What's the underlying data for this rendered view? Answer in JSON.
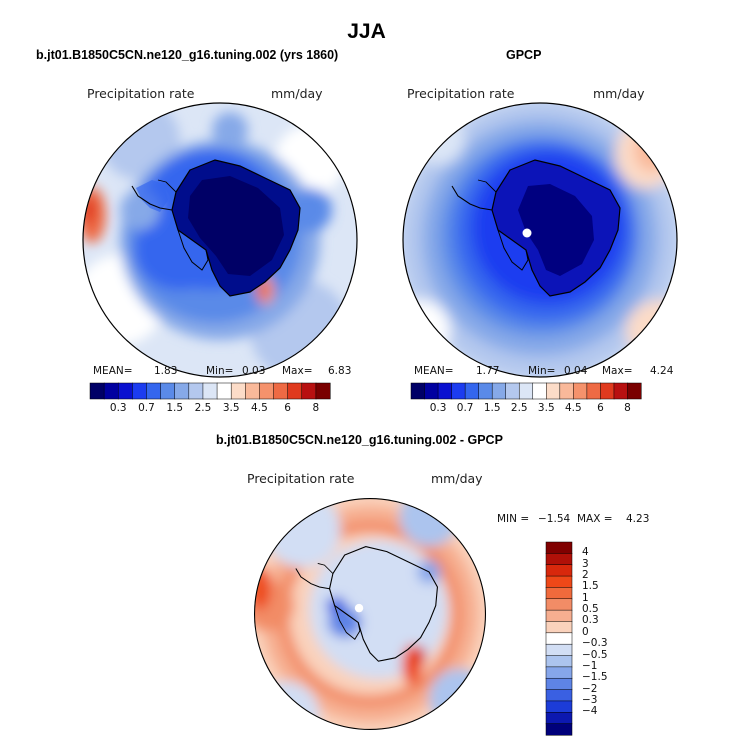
{
  "title": "JJA",
  "panels": [
    {
      "title": "b.jt01.B1850C5CN.ne120_g16.tuning.002 (yrs 1860)",
      "variable": "Precipitation rate",
      "units": "mm/day",
      "stats": {
        "mean_label": "MEAN=",
        "mean": "1.83",
        "min_label": "Min=",
        "min": "0.03",
        "max_label": "Max=",
        "max": "6.83"
      }
    },
    {
      "title": "GPCP",
      "variable": "Precipitation rate",
      "units": "mm/day",
      "stats": {
        "mean_label": "MEAN=",
        "mean": "1.77",
        "min_label": "Min=",
        "min": "0.04",
        "max_label": "Max=",
        "max": "4.24"
      }
    },
    {
      "title": "b.jt01.B1850C5CN.ne120_g16.tuning.002 - GPCP",
      "variable": "Precipitation rate",
      "units": "mm/day",
      "stats": {
        "min_label": "MIN =",
        "min": "−1.54",
        "max_label": "MAX =",
        "max": "4.23"
      }
    }
  ],
  "chart_data": [
    {
      "type": "heatmap",
      "projection": "south-polar-stereographic",
      "title": "b.jt01.B1850C5CN.ne120_g16.tuning.002 (yrs 1860)",
      "variable": "Precipitation rate",
      "units": "mm/day",
      "mean": 1.83,
      "min": 0.03,
      "max": 6.83,
      "colorbar": {
        "orientation": "horizontal",
        "tick_labels": [
          "0.3",
          "0.7",
          "1.5",
          "2.5",
          "3.5",
          "4.5",
          "6",
          "8"
        ],
        "levels": [
          0.2,
          0.3,
          0.5,
          0.7,
          1,
          1.5,
          2,
          2.5,
          3,
          3.5,
          4,
          4.5,
          5,
          6,
          7,
          8
        ],
        "colors": [
          "#000066",
          "#0000a0",
          "#0a10d0",
          "#1c3cf0",
          "#3466ee",
          "#5a8ae8",
          "#86a9e8",
          "#b4c8ee",
          "#dce6f6",
          "#ffffff",
          "#fcdcc8",
          "#f9b99a",
          "#f5926c",
          "#ee6a44",
          "#e03a1e",
          "#b81010",
          "#7a0000"
        ]
      }
    },
    {
      "type": "heatmap",
      "projection": "south-polar-stereographic",
      "title": "GPCP",
      "variable": "Precipitation rate",
      "units": "mm/day",
      "mean": 1.77,
      "min": 0.04,
      "max": 4.24,
      "colorbar": {
        "orientation": "horizontal",
        "tick_labels": [
          "0.3",
          "0.7",
          "1.5",
          "2.5",
          "3.5",
          "4.5",
          "6",
          "8"
        ],
        "levels": [
          0.2,
          0.3,
          0.5,
          0.7,
          1,
          1.5,
          2,
          2.5,
          3,
          3.5,
          4,
          4.5,
          5,
          6,
          7,
          8
        ],
        "colors": [
          "#000066",
          "#0000a0",
          "#0a10d0",
          "#1c3cf0",
          "#3466ee",
          "#5a8ae8",
          "#86a9e8",
          "#b4c8ee",
          "#dce6f6",
          "#ffffff",
          "#fcdcc8",
          "#f9b99a",
          "#f5926c",
          "#ee6a44",
          "#e03a1e",
          "#b81010",
          "#7a0000"
        ]
      }
    },
    {
      "type": "heatmap",
      "projection": "south-polar-stereographic",
      "title": "b.jt01.B1850C5CN.ne120_g16.tuning.002 - GPCP",
      "variable": "Precipitation rate",
      "units": "mm/day",
      "min": -1.54,
      "max": 4.23,
      "colorbar": {
        "orientation": "vertical",
        "tick_labels": [
          "4",
          "3",
          "2",
          "1.5",
          "1",
          "0.5",
          "0.3",
          "0",
          "−0.3",
          "−0.5",
          "−1",
          "−1.5",
          "−2",
          "−3",
          "−4"
        ],
        "levels": [
          4,
          3,
          2,
          1.5,
          1,
          0.5,
          0.3,
          0,
          -0.3,
          -0.5,
          -1,
          -1.5,
          -2,
          -3,
          -4
        ],
        "colors": [
          "#800000",
          "#b01008",
          "#d8280c",
          "#ee4818",
          "#f06a3c",
          "#f28c66",
          "#f6ae90",
          "#fad2bc",
          "#ffffff",
          "#d2def4",
          "#acc4ee",
          "#86a6ea",
          "#5e84e6",
          "#3a60e2",
          "#1c3cd8",
          "#0c18b0",
          "#00007a"
        ]
      }
    }
  ]
}
